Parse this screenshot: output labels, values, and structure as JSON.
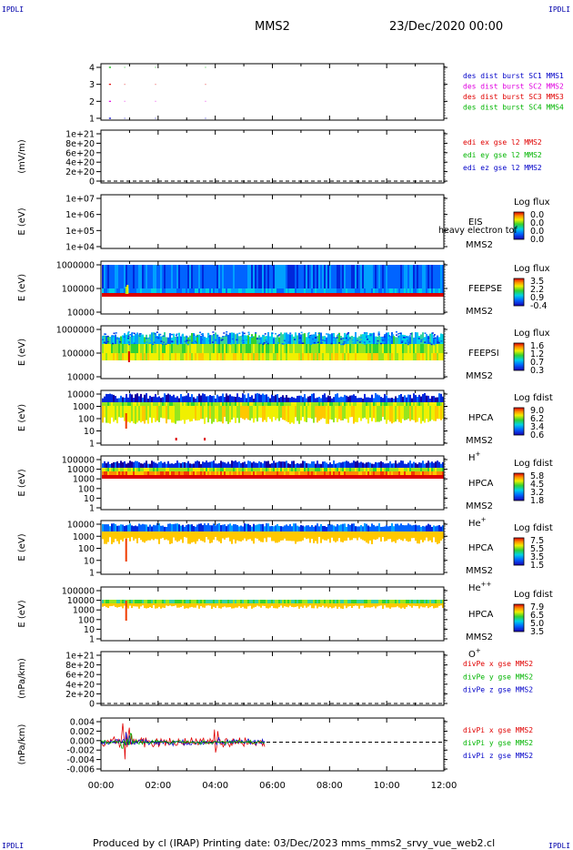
{
  "header": {
    "logo_left": "IPDLI",
    "logo_right": "IPDLI",
    "logo_bottom_left": "IPDLI",
    "logo_bottom_right": "IPDLI",
    "title": "MMS2",
    "datetime": "23/Dec/2020 00:00"
  },
  "footer": {
    "text": "Produced by cl (IRAP)    Printing date: 03/Dec/2023    mms_mms2_srvy_vue_web2.cl"
  },
  "colors": {
    "blue": "#0000c8",
    "red": "#e00000",
    "green": "#00b400",
    "magenta": "#e000e0",
    "black": "#000000"
  },
  "chart_data": [
    {
      "id": "burst",
      "type": "scatter",
      "ylabel": "",
      "yticks": [
        "1",
        "2",
        "3",
        "4"
      ],
      "ylim": [
        0.5,
        4.5
      ],
      "series": [
        {
          "name": "des dist burst SC1 MMS1",
          "color": "#0000c8",
          "y": 1,
          "segments": [
            [
              0.28,
              0.35
            ],
            [
              0.82,
              0.84
            ],
            [
              1.9,
              1.92
            ],
            [
              3.65,
              3.67
            ]
          ]
        },
        {
          "name": "des dist burst SC2 MMS2",
          "color": "#e000e0",
          "y": 2,
          "segments": [
            [
              0.28,
              0.35
            ],
            [
              0.82,
              0.84
            ],
            [
              1.9,
              1.92
            ],
            [
              3.65,
              3.67
            ]
          ]
        },
        {
          "name": "des dist burst SC3 MMS3",
          "color": "#e00000",
          "y": 3,
          "segments": [
            [
              0.28,
              0.35
            ],
            [
              0.82,
              0.84
            ],
            [
              1.9,
              1.92
            ],
            [
              3.65,
              3.67
            ]
          ]
        },
        {
          "name": "des dist burst SC4 MMS4",
          "color": "#00b400",
          "y": 4,
          "segments": [
            [
              0.28,
              0.35
            ],
            [
              0.82,
              0.84
            ],
            [
              1.9,
              1.92
            ],
            [
              3.65,
              3.67
            ]
          ]
        }
      ]
    },
    {
      "id": "edi",
      "type": "line",
      "ylabel": "(mV/m)",
      "yticks": [
        "0",
        "2e+20",
        "4e+20",
        "6e+20",
        "8e+20",
        "1e+21"
      ],
      "ylim": [
        0,
        1.1e+21
      ],
      "zero_line": true,
      "series": [
        {
          "name": "edi ex gse l2 MMS2",
          "color": "#e00000"
        },
        {
          "name": "edi ey gse l2 MMS2",
          "color": "#00b400"
        },
        {
          "name": "edi ez gse l2 MMS2",
          "color": "#0000c8"
        }
      ]
    },
    {
      "id": "eis",
      "type": "heatmap",
      "ylabel": "E (eV)",
      "yticks": [
        "1e+04",
        "1e+05",
        "1e+06",
        "1e+07"
      ],
      "instrument": "EIS",
      "instrument_sub": "heavy electron tof",
      "mission": "MMS2",
      "colorbar_title": "Log flux",
      "colorbar_ticks": [
        "0.0",
        "0.0",
        "0.0",
        "0.0"
      ]
    },
    {
      "id": "feepse",
      "type": "heatmap",
      "ylabel": "E (eV)",
      "yticks": [
        "10000",
        "100000",
        "1000000"
      ],
      "instrument": "FEEPSE",
      "mission": "MMS2",
      "colorbar_title": "Log flux",
      "colorbar_ticks": [
        "3.5",
        "2.2",
        "0.9",
        "-0.4"
      ]
    },
    {
      "id": "feepsi",
      "type": "heatmap",
      "ylabel": "E (eV)",
      "yticks": [
        "10000",
        "100000",
        "1000000"
      ],
      "instrument": "FEEPSI",
      "mission": "MMS2",
      "colorbar_title": "Log flux",
      "colorbar_ticks": [
        "1.6",
        "1.2",
        "0.7",
        "0.3"
      ]
    },
    {
      "id": "hpca_h",
      "type": "heatmap",
      "ylabel": "E (eV)",
      "yticks": [
        "1",
        "10",
        "100",
        "1000",
        "10000"
      ],
      "instrument": "HPCA",
      "mission": "MMS2",
      "species": "H",
      "species_charge": "+",
      "colorbar_title": "Log fdist",
      "colorbar_ticks": [
        "9.0",
        "6.2",
        "3.4",
        "0.6"
      ]
    },
    {
      "id": "hpca_he1",
      "type": "heatmap",
      "ylabel": "E (eV)",
      "yticks": [
        "1",
        "10",
        "100",
        "1000",
        "10000",
        "100000"
      ],
      "instrument": "HPCA",
      "mission": "MMS2",
      "species": "He",
      "species_charge": "+",
      "colorbar_title": "Log fdist",
      "colorbar_ticks": [
        "5.8",
        "4.5",
        "3.2",
        "1.8"
      ]
    },
    {
      "id": "hpca_he2",
      "type": "heatmap",
      "ylabel": "E (eV)",
      "yticks": [
        "1",
        "10",
        "100",
        "1000",
        "10000"
      ],
      "instrument": "HPCA",
      "mission": "MMS2",
      "species": "He",
      "species_charge": "++",
      "colorbar_title": "Log fdist",
      "colorbar_ticks": [
        "7.5",
        "5.5",
        "3.5",
        "1.5"
      ]
    },
    {
      "id": "hpca_o",
      "type": "heatmap",
      "ylabel": "E (eV)",
      "yticks": [
        "1",
        "10",
        "100",
        "1000",
        "10000",
        "100000"
      ],
      "instrument": "HPCA",
      "mission": "MMS2",
      "species": "O",
      "species_charge": "+",
      "colorbar_title": "Log fdist",
      "colorbar_ticks": [
        "7.9",
        "6.5",
        "5.0",
        "3.5"
      ]
    },
    {
      "id": "divpe",
      "type": "line",
      "ylabel": "(nPa/km)",
      "yticks": [
        "0",
        "2e+20",
        "4e+20",
        "6e+20",
        "8e+20",
        "1e+21"
      ],
      "ylim": [
        0,
        1.1e+21
      ],
      "zero_line": true,
      "series": [
        {
          "name": "divPe x gse MMS2",
          "color": "#e00000"
        },
        {
          "name": "divPe y gse MMS2",
          "color": "#00b400"
        },
        {
          "name": "divPe z gse MMS2",
          "color": "#0000c8"
        }
      ]
    },
    {
      "id": "divpi",
      "type": "line",
      "ylabel": "(nPa/km)",
      "yticks": [
        "-0.006",
        "-0.004",
        "-0.002",
        "0.000",
        "0.002",
        "0.004"
      ],
      "ylim": [
        -0.0068,
        0.0052
      ],
      "zero_line": true,
      "data_end_hour": 5.75,
      "series": [
        {
          "name": "divPi x gse MMS2",
          "color": "#e00000"
        },
        {
          "name": "divPi y gse MMS2",
          "color": "#00b400"
        },
        {
          "name": "divPi z gse MMS2",
          "color": "#0000c8"
        }
      ]
    }
  ],
  "x_axis": {
    "range_hours": [
      0,
      12
    ],
    "tick_labels": [
      "00:00",
      "02:00",
      "04:00",
      "06:00",
      "08:00",
      "10:00",
      "12:00"
    ]
  }
}
